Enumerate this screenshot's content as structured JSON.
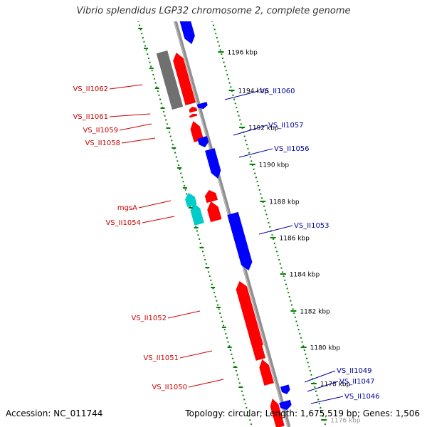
{
  "title": "Vibrio splendidus LGP32 chromosome 2, complete genome",
  "footer": {
    "accession": "Accession: NC_011744",
    "summary": "Topology: circular; Length: 1,675,519 bp; Genes: 1,506"
  },
  "colors": {
    "forward_gene": "#ff0000",
    "reverse_gene": "#0000ff",
    "rna_gene_forward": "#00cccc",
    "pseudogene": "#707070",
    "backbone": "#909090",
    "tick_marks": "#008000",
    "forward_label": "#cc0000",
    "reverse_label": "#000099"
  },
  "kbp_ticks": [
    "1196 kbp",
    "1194 kbp",
    "1192 kbp",
    "1190 kbp",
    "1188 kbp",
    "1186 kbp",
    "1184 kbp",
    "1182 kbp",
    "1180 kbp",
    "1178 kbp",
    "1176 kbp"
  ],
  "forward_labels": [
    "VS_II1062",
    "VS_II1061",
    "VS_II1059",
    "VS_II1058",
    "mgsA",
    "VS_II1054",
    "VS_II1052",
    "VS_II1051",
    "VS_II1050"
  ],
  "reverse_labels": [
    "VS_II1060",
    "VS_II1057",
    "VS_II1056",
    "VS_II1053",
    "VS_II1049",
    "VS_II1047",
    "VS_II1046"
  ]
}
